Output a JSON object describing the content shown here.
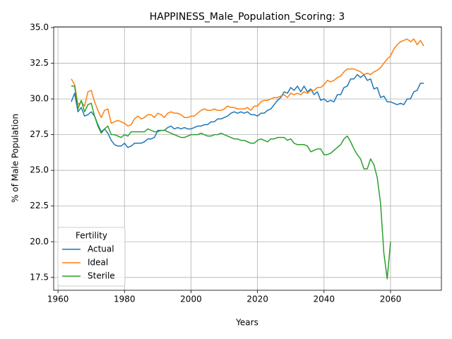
{
  "chart_data": {
    "type": "line",
    "title": "HAPPINESS_Male_Population_Scoring: 3",
    "x_label": "Years",
    "y_label": "% of Male Population",
    "legend_title": "Fertility",
    "legend": "lower left",
    "grid": true,
    "xlim": [
      1958.7,
      2075.3
    ],
    "ylim": [
      16.6,
      35.05
    ],
    "xticks": [
      1960,
      1980,
      2000,
      2020,
      2040,
      2060
    ],
    "yticks": [
      17.5,
      {
        "value": 20,
        "label": "20.0"
      },
      22.5,
      {
        "value": 25,
        "label": "25.0"
      },
      27.5,
      {
        "value": 30,
        "label": "30.0"
      },
      32.5,
      {
        "value": 35,
        "label": "35.0"
      }
    ],
    "x": [
      1964,
      1965,
      1966,
      1967,
      1968,
      1969,
      1970,
      1971,
      1972,
      1973,
      1974,
      1975,
      1976,
      1977,
      1978,
      1979,
      1980,
      1981,
      1982,
      1983,
      1984,
      1985,
      1986,
      1987,
      1988,
      1989,
      1990,
      1991,
      1992,
      1993,
      1994,
      1995,
      1996,
      1997,
      1998,
      1999,
      2000,
      2001,
      2002,
      2003,
      2004,
      2005,
      2006,
      2007,
      2008,
      2009,
      2010,
      2011,
      2012,
      2013,
      2014,
      2015,
      2016,
      2017,
      2018,
      2019,
      2020,
      2021,
      2022,
      2023,
      2024,
      2025,
      2026,
      2027,
      2028,
      2029,
      2030,
      2031,
      2032,
      2033,
      2034,
      2035,
      2036,
      2037,
      2038,
      2039,
      2040,
      2041,
      2042,
      2043,
      2044,
      2045,
      2046,
      2047,
      2048,
      2049,
      2050,
      2051,
      2052,
      2053,
      2054,
      2055,
      2056,
      2057,
      2058,
      2059,
      2060,
      2061,
      2062,
      2063,
      2064,
      2065,
      2066,
      2067,
      2068,
      2069,
      2070
    ],
    "series": [
      {
        "name": "Actual",
        "color": "#1f77b4",
        "values": [
          29.8,
          30.4,
          29.1,
          29.4,
          28.8,
          28.9,
          29.1,
          28.8,
          28.2,
          27.7,
          27.9,
          27.6,
          27.1,
          26.8,
          26.7,
          26.7,
          26.9,
          26.6,
          26.7,
          26.9,
          26.9,
          26.9,
          27.0,
          27.2,
          27.2,
          27.3,
          27.8,
          27.8,
          27.8,
          28.0,
          28.1,
          27.9,
          28.0,
          27.9,
          28.0,
          27.9,
          27.9,
          28.0,
          28.1,
          28.1,
          28.2,
          28.2,
          28.4,
          28.4,
          28.6,
          28.6,
          28.7,
          28.8,
          29.0,
          29.1,
          29.0,
          29.1,
          29.0,
          29.1,
          28.9,
          28.9,
          28.8,
          29.0,
          29.0,
          29.2,
          29.3,
          29.6,
          29.9,
          30.1,
          30.5,
          30.4,
          30.8,
          30.6,
          30.9,
          30.5,
          30.9,
          30.5,
          30.7,
          30.3,
          30.5,
          29.9,
          30.0,
          29.8,
          29.9,
          29.8,
          30.3,
          30.3,
          30.8,
          30.9,
          31.4,
          31.4,
          31.7,
          31.5,
          31.7,
          31.3,
          31.4,
          30.7,
          30.8,
          30.1,
          30.2,
          29.8,
          29.8,
          29.7,
          29.6,
          29.7,
          29.6,
          30.0,
          30.0,
          30.5,
          30.6,
          31.1,
          31.1
        ]
      },
      {
        "name": "Ideal",
        "color": "#ff7f0e",
        "values": [
          31.4,
          31.0,
          29.6,
          29.8,
          29.5,
          30.5,
          30.6,
          29.8,
          29.2,
          28.7,
          29.2,
          29.3,
          28.3,
          28.4,
          28.5,
          28.4,
          28.3,
          28.1,
          28.2,
          28.6,
          28.8,
          28.6,
          28.7,
          28.9,
          28.9,
          28.7,
          29.0,
          28.9,
          28.7,
          29.0,
          29.1,
          29.0,
          29.0,
          28.9,
          28.7,
          28.7,
          28.8,
          28.8,
          29.0,
          29.2,
          29.3,
          29.2,
          29.2,
          29.3,
          29.2,
          29.2,
          29.3,
          29.5,
          29.4,
          29.4,
          29.3,
          29.3,
          29.3,
          29.4,
          29.2,
          29.5,
          29.5,
          29.8,
          29.9,
          29.9,
          30.0,
          30.1,
          30.1,
          30.2,
          30.3,
          30.1,
          30.4,
          30.3,
          30.4,
          30.3,
          30.5,
          30.4,
          30.6,
          30.6,
          30.8,
          30.8,
          31.0,
          31.3,
          31.2,
          31.3,
          31.5,
          31.6,
          31.9,
          32.1,
          32.1,
          32.1,
          32.0,
          31.9,
          31.7,
          31.8,
          31.7,
          31.9,
          32.0,
          32.2,
          32.5,
          32.8,
          33.0,
          33.5,
          33.8,
          34.0,
          34.1,
          34.2,
          34.0,
          34.2,
          33.8,
          34.1,
          33.7
        ]
      },
      {
        "name": "Sterile",
        "color": "#2ca02c",
        "values": [
          30.9,
          30.9,
          29.3,
          29.9,
          29.1,
          29.6,
          29.7,
          28.8,
          28.1,
          27.6,
          27.9,
          28.1,
          27.5,
          27.5,
          27.4,
          27.3,
          27.5,
          27.4,
          27.7,
          27.7,
          27.7,
          27.7,
          27.7,
          27.9,
          27.8,
          27.7,
          27.7,
          27.8,
          27.8,
          27.7,
          27.6,
          27.5,
          27.4,
          27.3,
          27.3,
          27.4,
          27.5,
          27.5,
          27.5,
          27.6,
          27.5,
          27.4,
          27.4,
          27.5,
          27.5,
          27.6,
          27.5,
          27.4,
          27.3,
          27.2,
          27.2,
          27.1,
          27.1,
          27.0,
          26.9,
          26.9,
          27.1,
          27.2,
          27.1,
          27.0,
          27.2,
          27.2,
          27.3,
          27.3,
          27.3,
          27.1,
          27.2,
          26.9,
          26.8,
          26.8,
          26.8,
          26.7,
          26.3,
          26.4,
          26.5,
          26.5,
          26.1,
          26.1,
          26.2,
          26.4,
          26.6,
          26.8,
          27.2,
          27.4,
          27.0,
          26.5,
          26.1,
          25.8,
          25.1,
          25.1,
          25.8,
          25.4,
          24.5,
          22.7,
          19.2,
          17.4,
          20.0,
          null,
          null,
          null,
          null,
          null,
          null,
          null,
          null,
          null,
          null
        ]
      }
    ]
  }
}
